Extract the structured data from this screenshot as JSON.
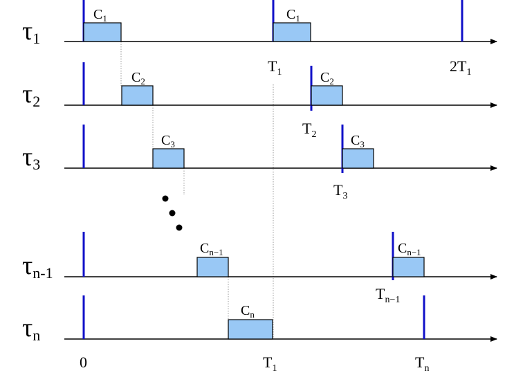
{
  "diagram": {
    "rows": [
      {
        "task": "τ",
        "task_sub": "1",
        "boxes": [
          {
            "label": "C",
            "sub": "1"
          },
          {
            "label": "C",
            "sub": "1"
          }
        ],
        "ticks": [
          {
            "label": "T",
            "sub": "1"
          },
          {
            "label": "2T",
            "sub": "1"
          }
        ]
      },
      {
        "task": "τ",
        "task_sub": "2",
        "boxes": [
          {
            "label": "C",
            "sub": "2"
          },
          {
            "label": "C",
            "sub": "2"
          }
        ],
        "ticks": [
          {
            "label": "T",
            "sub": "2"
          }
        ]
      },
      {
        "task": "τ",
        "task_sub": "3",
        "boxes": [
          {
            "label": "C",
            "sub": "3"
          },
          {
            "label": "C",
            "sub": "3"
          }
        ],
        "ticks": [
          {
            "label": "T",
            "sub": "3"
          }
        ]
      },
      {
        "task": "τ",
        "task_sub": "n-1",
        "boxes": [
          {
            "label": "C",
            "sub": "n−1"
          },
          {
            "label": "C",
            "sub": "n−1"
          }
        ],
        "ticks": [
          {
            "label": "T",
            "sub": "n−1"
          }
        ]
      },
      {
        "task": "τ",
        "task_sub": "n",
        "boxes": [
          {
            "label": "C",
            "sub": "n"
          }
        ],
        "ticks": [
          {
            "label": "0",
            "sub": ""
          },
          {
            "label": "T",
            "sub": "1"
          },
          {
            "label": "T",
            "sub": "n"
          }
        ]
      }
    ]
  }
}
